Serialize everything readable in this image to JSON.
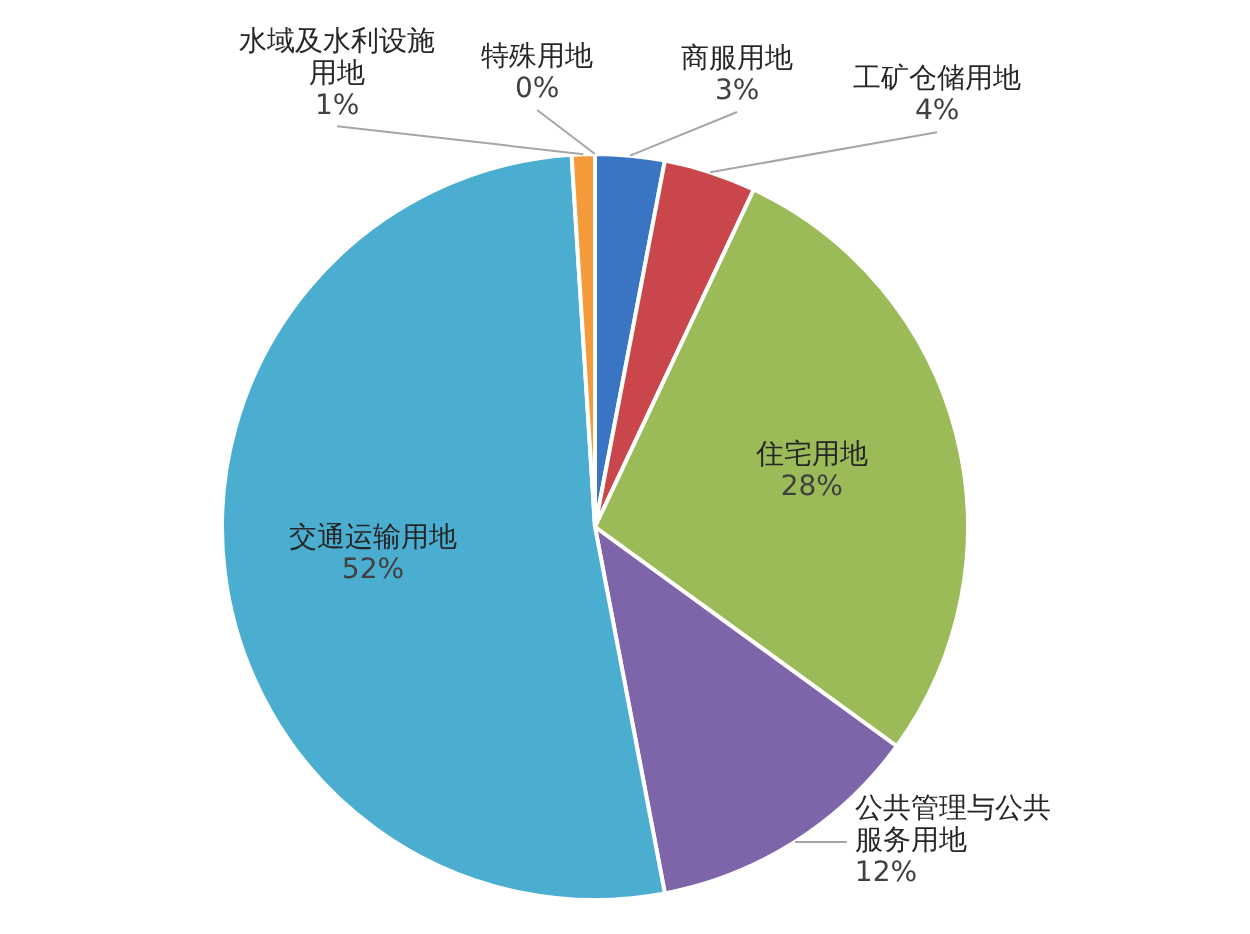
{
  "chart_data": {
    "type": "pie",
    "categories": [
      "特殊用地",
      "商服用地",
      "工矿仓储用地",
      "住宅用地",
      "公共管理与公共服务用地",
      "交通运输用地",
      "水域及水利设施用地"
    ],
    "values": [
      0,
      3,
      4,
      28,
      12,
      52,
      1
    ],
    "value_labels": [
      "0%",
      "3%",
      "4%",
      "28%",
      "12%",
      "52%",
      "1%"
    ],
    "colors": [
      "#a5a5a5",
      "#3a75c4",
      "#c9474a",
      "#9bbb59",
      "#7e64a8",
      "#4baed0",
      "#f59a3b"
    ],
    "legend": false
  }
}
